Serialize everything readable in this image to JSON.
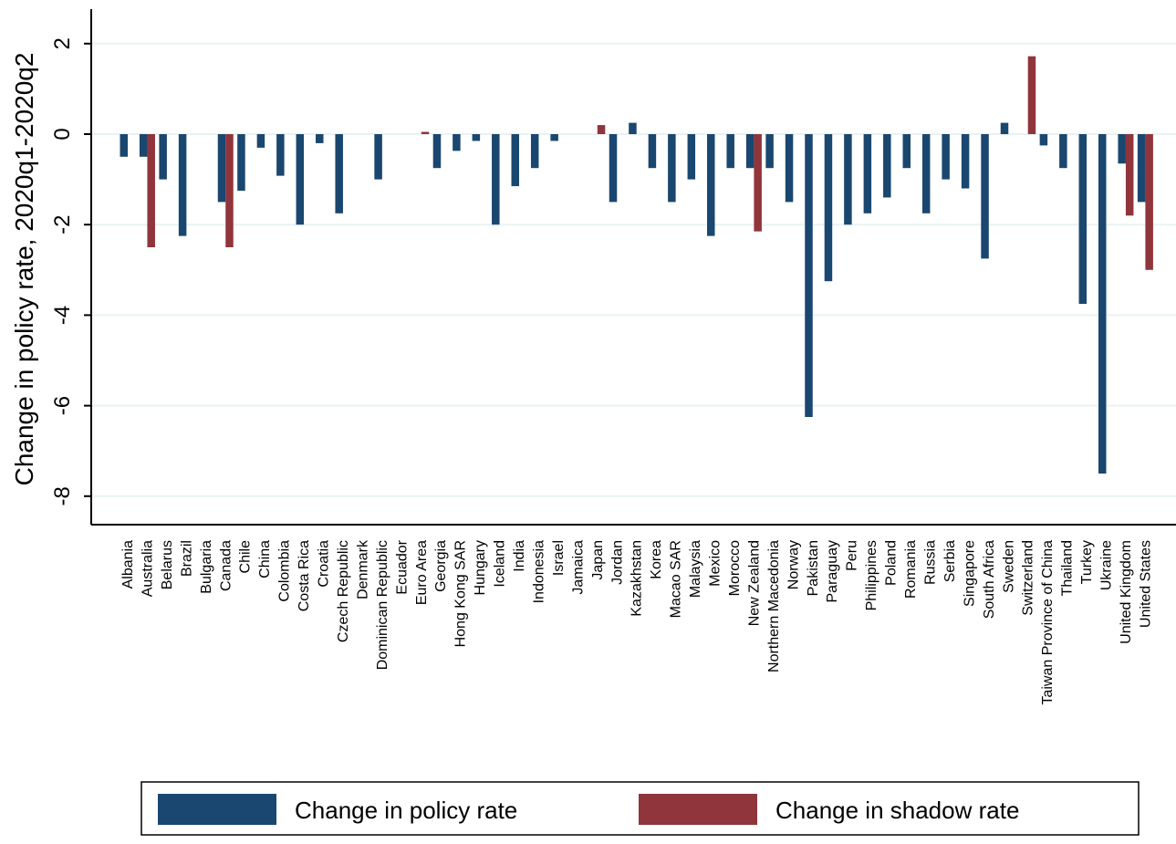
{
  "chart_data": {
    "type": "bar",
    "title": "",
    "xlabel": "",
    "ylabel": "Change in policy rate, 2020q1-2020q2",
    "ylim": [
      -8.6,
      2.7
    ],
    "yticks": [
      2,
      0,
      -2,
      -4,
      -6,
      -8
    ],
    "ytick_labels": [
      "2",
      "0",
      "-2",
      "-4",
      "-6",
      "-8"
    ],
    "grid": true,
    "legend_position": "bottom",
    "categories": [
      "Albania",
      "Australia",
      "Belarus",
      "Brazil",
      "Bulgaria",
      "Canada",
      "Chile",
      "China",
      "Colombia",
      "Costa Rica",
      "Croatia",
      "Czech Republic",
      "Denmark",
      "Dominican Republic",
      "Ecuador",
      "Euro Area",
      "Georgia",
      "Hong Kong SAR",
      "Hungary",
      "Iceland",
      "India",
      "Indonesia",
      "Israel",
      "Jamaica",
      "Japan",
      "Jordan",
      "Kazakhstan",
      "Korea",
      "Macao SAR",
      "Malaysia",
      "Mexico",
      "Morocco",
      "New Zealand",
      "Northern Macedonia",
      "Norway",
      "Pakistan",
      "Paraguay",
      "Peru",
      "Philippines",
      "Poland",
      "Romania",
      "Russia",
      "Serbia",
      "Singapore",
      "South Africa",
      "Sweden",
      "Switzerland",
      "Taiwan Province of China",
      "Thailand",
      "Turkey",
      "Ukraine",
      "United Kingdom",
      "United States"
    ],
    "series": [
      {
        "name": "Change in policy rate",
        "color": "#1a476f",
        "values": [
          -0.5,
          -0.5,
          -1.0,
          -2.25,
          null,
          -1.5,
          -1.25,
          -0.3,
          -0.92,
          -2.0,
          -0.2,
          -1.75,
          null,
          -1.0,
          null,
          null,
          -0.75,
          -0.37,
          -0.15,
          -2.0,
          -1.15,
          -0.75,
          -0.15,
          null,
          null,
          -1.5,
          0.25,
          -0.75,
          -1.5,
          -1.0,
          -2.25,
          -0.75,
          -0.75,
          -0.75,
          -1.5,
          -6.25,
          -3.25,
          -2.0,
          -1.75,
          -1.4,
          -0.75,
          -1.75,
          -1.0,
          -1.2,
          -2.75,
          0.25,
          null,
          -0.25,
          -0.75,
          -3.75,
          -7.5,
          -0.65,
          -1.5
        ]
      },
      {
        "name": "Change in shadow rate",
        "color": "#90353b",
        "values": [
          null,
          -2.5,
          null,
          null,
          null,
          -2.5,
          null,
          null,
          null,
          null,
          null,
          null,
          null,
          null,
          null,
          0.05,
          null,
          null,
          null,
          null,
          null,
          null,
          null,
          null,
          0.2,
          null,
          null,
          null,
          null,
          null,
          null,
          null,
          -2.15,
          null,
          null,
          null,
          null,
          null,
          null,
          null,
          null,
          null,
          null,
          null,
          null,
          null,
          1.72,
          null,
          null,
          null,
          null,
          -1.8,
          -3.0
        ]
      }
    ]
  }
}
